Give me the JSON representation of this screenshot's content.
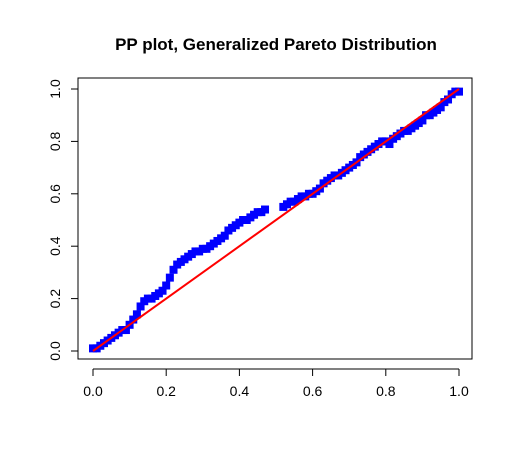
{
  "chart_data": {
    "type": "scatter",
    "title": "PP plot, Generalized Pareto Distribution",
    "xlabel": "",
    "ylabel": "",
    "xlim": [
      0,
      1
    ],
    "ylim": [
      0,
      1
    ],
    "x_ticks": [
      0.0,
      0.2,
      0.4,
      0.6,
      0.8,
      1.0
    ],
    "y_ticks": [
      0.0,
      0.2,
      0.4,
      0.6,
      0.8,
      1.0
    ],
    "x_tick_labels": [
      "0.0",
      "0.2",
      "0.4",
      "0.6",
      "0.8",
      "1.0"
    ],
    "y_tick_labels": [
      "0.0",
      "0.2",
      "0.4",
      "0.6",
      "0.8",
      "1.0"
    ],
    "grid": false,
    "point_color": "#0000ff",
    "line_color": "#ff0000",
    "reference_line": {
      "x": [
        0,
        1
      ],
      "y": [
        0,
        1
      ]
    },
    "series": [
      {
        "x": [
          0.0,
          0.01,
          0.02,
          0.03,
          0.04,
          0.05,
          0.06,
          0.07,
          0.08,
          0.09,
          0.1,
          0.11,
          0.12,
          0.13,
          0.14,
          0.15,
          0.16,
          0.17,
          0.18,
          0.19,
          0.2,
          0.21,
          0.22,
          0.23,
          0.24,
          0.25,
          0.26,
          0.27,
          0.28,
          0.29,
          0.3,
          0.31,
          0.32,
          0.33,
          0.34,
          0.35,
          0.36,
          0.37,
          0.38,
          0.39,
          0.4,
          0.41,
          0.42,
          0.43,
          0.44,
          0.45,
          0.46,
          0.47,
          0.52,
          0.53,
          0.54,
          0.55,
          0.56,
          0.57,
          0.58,
          0.59,
          0.6,
          0.61,
          0.62,
          0.63,
          0.64,
          0.65,
          0.66,
          0.67,
          0.68,
          0.69,
          0.7,
          0.71,
          0.72,
          0.73,
          0.74,
          0.75,
          0.76,
          0.77,
          0.78,
          0.79,
          0.8,
          0.81,
          0.82,
          0.83,
          0.84,
          0.85,
          0.86,
          0.87,
          0.88,
          0.89,
          0.9,
          0.91,
          0.92,
          0.93,
          0.94,
          0.95,
          0.96,
          0.97,
          0.98,
          0.99,
          1.0
        ],
        "y": [
          0.01,
          0.01,
          0.02,
          0.03,
          0.04,
          0.05,
          0.06,
          0.07,
          0.08,
          0.08,
          0.1,
          0.12,
          0.14,
          0.17,
          0.19,
          0.2,
          0.2,
          0.21,
          0.22,
          0.23,
          0.25,
          0.28,
          0.31,
          0.33,
          0.34,
          0.35,
          0.36,
          0.37,
          0.38,
          0.38,
          0.39,
          0.39,
          0.4,
          0.41,
          0.42,
          0.43,
          0.44,
          0.46,
          0.47,
          0.48,
          0.49,
          0.5,
          0.5,
          0.51,
          0.52,
          0.53,
          0.53,
          0.54,
          0.55,
          0.56,
          0.57,
          0.57,
          0.58,
          0.59,
          0.59,
          0.6,
          0.6,
          0.61,
          0.62,
          0.64,
          0.65,
          0.66,
          0.67,
          0.67,
          0.68,
          0.69,
          0.7,
          0.71,
          0.72,
          0.74,
          0.75,
          0.76,
          0.77,
          0.78,
          0.79,
          0.8,
          0.8,
          0.79,
          0.81,
          0.82,
          0.83,
          0.84,
          0.84,
          0.85,
          0.86,
          0.87,
          0.88,
          0.9,
          0.9,
          0.91,
          0.92,
          0.93,
          0.95,
          0.96,
          0.98,
          0.99,
          0.99
        ]
      }
    ]
  }
}
